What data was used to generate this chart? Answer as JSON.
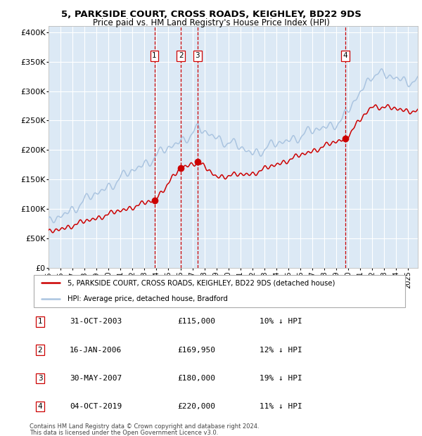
{
  "title": "5, PARKSIDE COURT, CROSS ROADS, KEIGHLEY, BD22 9DS",
  "subtitle": "Price paid vs. HM Land Registry's House Price Index (HPI)",
  "legend_house": "5, PARKSIDE COURT, CROSS ROADS, KEIGHLEY, BD22 9DS (detached house)",
  "legend_hpi": "HPI: Average price, detached house, Bradford",
  "footnote1": "Contains HM Land Registry data © Crown copyright and database right 2024.",
  "footnote2": "This data is licensed under the Open Government Licence v3.0.",
  "sales": [
    {
      "num": 1,
      "date": "31-OCT-2003",
      "price": 115000,
      "pct": "10%",
      "dir": "↓"
    },
    {
      "num": 2,
      "date": "16-JAN-2006",
      "price": 169950,
      "pct": "12%",
      "dir": "↓"
    },
    {
      "num": 3,
      "date": "30-MAY-2007",
      "price": 180000,
      "pct": "19%",
      "dir": "↓"
    },
    {
      "num": 4,
      "date": "04-OCT-2019",
      "price": 220000,
      "pct": "11%",
      "dir": "↓"
    }
  ],
  "sale_dates_decimal": [
    2003.833,
    2006.042,
    2007.417,
    2019.75
  ],
  "sale_prices": [
    115000,
    169950,
    180000,
    220000
  ],
  "hpi_color": "#aac4e0",
  "price_color": "#cc0000",
  "dot_color": "#cc0000",
  "vline_color": "#cc0000",
  "bg_color": "#dce9f5",
  "grid_color": "#ffffff",
  "label_box_color": "#cc0000",
  "ylim": [
    0,
    410000
  ],
  "xlim_start": 1995.0,
  "xlim_end": 2025.8,
  "yticks": [
    0,
    50000,
    100000,
    150000,
    200000,
    250000,
    300000,
    350000,
    400000
  ]
}
